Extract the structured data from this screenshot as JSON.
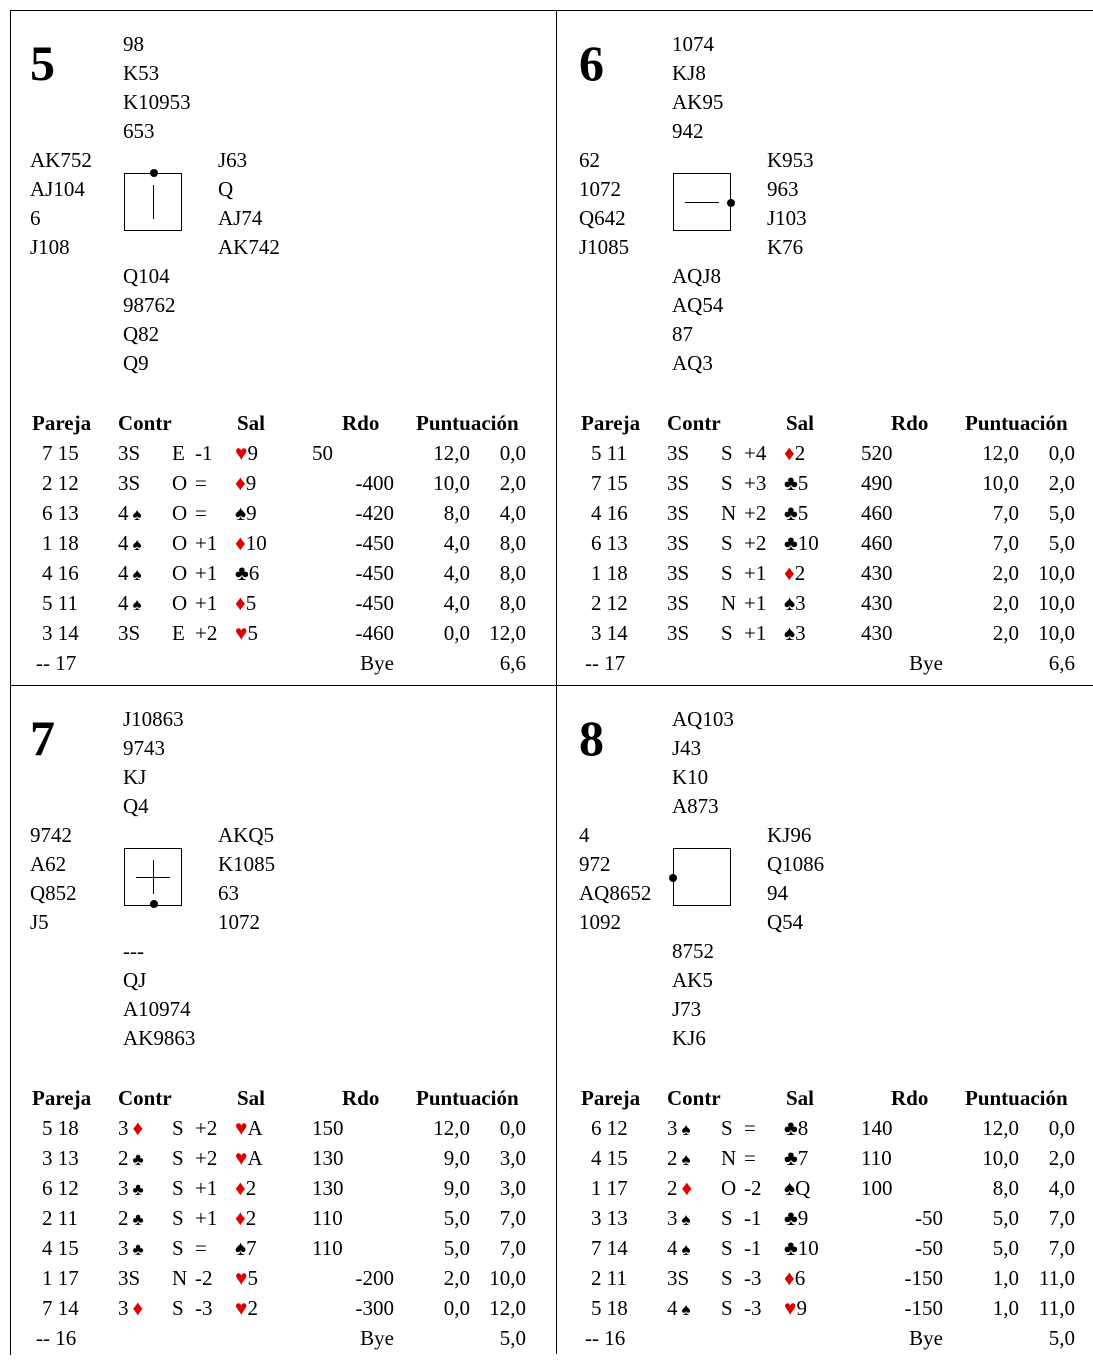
{
  "boards": [
    {
      "number": "5",
      "north": [
        "98",
        "K53",
        "K10953",
        "653"
      ],
      "west": [
        "AK752",
        "AJ104",
        "6",
        "J108"
      ],
      "east": [
        "J63",
        "Q",
        "AJ74",
        "AK742"
      ],
      "south": [
        "Q104",
        "98762",
        "Q82",
        "Q9"
      ],
      "vulnerability": "NS",
      "dealer": "N",
      "headers": {
        "pair": "Pareja",
        "contract": "Contr",
        "lead": "Sal",
        "result": "Rdo",
        "points": "Puntuación"
      },
      "rows": [
        {
          "pair": "7 15",
          "contract": "3S",
          "declarer": "E",
          "tricks": "-1",
          "lead_suit": "♥",
          "lead_card": "9",
          "score": "50",
          "score_side": "ns",
          "pts_ns": "12,0",
          "pts_ew": "0,0"
        },
        {
          "pair": "2 12",
          "contract": "3S",
          "declarer": "O",
          "tricks": "=",
          "lead_suit": "♦",
          "lead_card": "9",
          "score": "-400",
          "score_side": "ew",
          "pts_ns": "10,0",
          "pts_ew": "2,0"
        },
        {
          "pair": "6 13",
          "contract": "4♠",
          "declarer": "O",
          "tricks": "=",
          "lead_suit": "♠",
          "lead_card": "9",
          "score": "-420",
          "score_side": "ew",
          "pts_ns": "8,0",
          "pts_ew": "4,0"
        },
        {
          "pair": "1 18",
          "contract": "4♠",
          "declarer": "O",
          "tricks": "+1",
          "lead_suit": "♦",
          "lead_card": "10",
          "score": "-450",
          "score_side": "ew",
          "pts_ns": "4,0",
          "pts_ew": "8,0"
        },
        {
          "pair": "4 16",
          "contract": "4♠",
          "declarer": "O",
          "tricks": "+1",
          "lead_suit": "♣",
          "lead_card": "6",
          "score": "-450",
          "score_side": "ew",
          "pts_ns": "4,0",
          "pts_ew": "8,0"
        },
        {
          "pair": "5 11",
          "contract": "4♠",
          "declarer": "O",
          "tricks": "+1",
          "lead_suit": "♦",
          "lead_card": "5",
          "score": "-450",
          "score_side": "ew",
          "pts_ns": "4,0",
          "pts_ew": "8,0"
        },
        {
          "pair": "3 14",
          "contract": "3S",
          "declarer": "E",
          "tricks": "+2",
          "lead_suit": "♥",
          "lead_card": "5",
          "score": "-460",
          "score_side": "ew",
          "pts_ns": "0,0",
          "pts_ew": "12,0"
        }
      ],
      "bye": {
        "pair": "-- 17",
        "label": "Bye",
        "points": "6,6"
      }
    },
    {
      "number": "6",
      "north": [
        "1074",
        "KJ8",
        "AK95",
        "942"
      ],
      "west": [
        "62",
        "1072",
        "Q642",
        "J1085"
      ],
      "east": [
        "K953",
        "963",
        "J103",
        "K76"
      ],
      "south": [
        "AQJ8",
        "AQ54",
        "87",
        "AQ3"
      ],
      "vulnerability": "EW",
      "dealer": "E",
      "headers": {
        "pair": "Pareja",
        "contract": "Contr",
        "lead": "Sal",
        "result": "Rdo",
        "points": "Puntuación"
      },
      "rows": [
        {
          "pair": "5 11",
          "contract": "3S",
          "declarer": "S",
          "tricks": "+4",
          "lead_suit": "♦",
          "lead_card": "2",
          "score": "520",
          "score_side": "ns",
          "pts_ns": "12,0",
          "pts_ew": "0,0"
        },
        {
          "pair": "7 15",
          "contract": "3S",
          "declarer": "S",
          "tricks": "+3",
          "lead_suit": "♣",
          "lead_card": "5",
          "score": "490",
          "score_side": "ns",
          "pts_ns": "10,0",
          "pts_ew": "2,0"
        },
        {
          "pair": "4 16",
          "contract": "3S",
          "declarer": "N",
          "tricks": "+2",
          "lead_suit": "♣",
          "lead_card": "5",
          "score": "460",
          "score_side": "ns",
          "pts_ns": "7,0",
          "pts_ew": "5,0"
        },
        {
          "pair": "6 13",
          "contract": "3S",
          "declarer": "S",
          "tricks": "+2",
          "lead_suit": "♣",
          "lead_card": "10",
          "score": "460",
          "score_side": "ns",
          "pts_ns": "7,0",
          "pts_ew": "5,0"
        },
        {
          "pair": "1 18",
          "contract": "3S",
          "declarer": "S",
          "tricks": "+1",
          "lead_suit": "♦",
          "lead_card": "2",
          "score": "430",
          "score_side": "ns",
          "pts_ns": "2,0",
          "pts_ew": "10,0"
        },
        {
          "pair": "2 12",
          "contract": "3S",
          "declarer": "N",
          "tricks": "+1",
          "lead_suit": "♠",
          "lead_card": "3",
          "score": "430",
          "score_side": "ns",
          "pts_ns": "2,0",
          "pts_ew": "10,0"
        },
        {
          "pair": "3 14",
          "contract": "3S",
          "declarer": "S",
          "tricks": "+1",
          "lead_suit": "♠",
          "lead_card": "3",
          "score": "430",
          "score_side": "ns",
          "pts_ns": "2,0",
          "pts_ew": "10,0"
        }
      ],
      "bye": {
        "pair": "-- 17",
        "label": "Bye",
        "points": "6,6"
      }
    },
    {
      "number": "7",
      "north": [
        "J10863",
        "9743",
        "KJ",
        "Q4"
      ],
      "west": [
        "9742",
        "A62",
        "Q852",
        "J5"
      ],
      "east": [
        "AKQ5",
        "K1085",
        "63",
        "1072"
      ],
      "south": [
        "---",
        "QJ",
        "A10974",
        "AK9863"
      ],
      "vulnerability": "All",
      "dealer": "S",
      "headers": {
        "pair": "Pareja",
        "contract": "Contr",
        "lead": "Sal",
        "result": "Rdo",
        "points": "Puntuación"
      },
      "rows": [
        {
          "pair": "5 18",
          "contract": "3♦",
          "declarer": "S",
          "tricks": "+2",
          "lead_suit": "♥",
          "lead_card": "A",
          "score": "150",
          "score_side": "ns",
          "pts_ns": "12,0",
          "pts_ew": "0,0"
        },
        {
          "pair": "3 13",
          "contract": "2♣",
          "declarer": "S",
          "tricks": "+2",
          "lead_suit": "♥",
          "lead_card": "A",
          "score": "130",
          "score_side": "ns",
          "pts_ns": "9,0",
          "pts_ew": "3,0"
        },
        {
          "pair": "6 12",
          "contract": "3♣",
          "declarer": "S",
          "tricks": "+1",
          "lead_suit": "♦",
          "lead_card": "2",
          "score": "130",
          "score_side": "ns",
          "pts_ns": "9,0",
          "pts_ew": "3,0"
        },
        {
          "pair": "2 11",
          "contract": "2♣",
          "declarer": "S",
          "tricks": "+1",
          "lead_suit": "♦",
          "lead_card": "2",
          "score": "110",
          "score_side": "ns",
          "pts_ns": "5,0",
          "pts_ew": "7,0"
        },
        {
          "pair": "4 15",
          "contract": "3♣",
          "declarer": "S",
          "tricks": "=",
          "lead_suit": "♠",
          "lead_card": "7",
          "score": "110",
          "score_side": "ns",
          "pts_ns": "5,0",
          "pts_ew": "7,0"
        },
        {
          "pair": "1 17",
          "contract": "3S",
          "declarer": "N",
          "tricks": "-2",
          "lead_suit": "♥",
          "lead_card": "5",
          "score": "-200",
          "score_side": "ew",
          "pts_ns": "2,0",
          "pts_ew": "10,0"
        },
        {
          "pair": "7 14",
          "contract": "3♦",
          "declarer": "S",
          "tricks": "-3",
          "lead_suit": "♥",
          "lead_card": "2",
          "score": "-300",
          "score_side": "ew",
          "pts_ns": "0,0",
          "pts_ew": "12,0"
        }
      ],
      "bye": {
        "pair": "-- 16",
        "label": "Bye",
        "points": "5,0"
      }
    },
    {
      "number": "8",
      "north": [
        "AQ103",
        "J43",
        "K10",
        "A873"
      ],
      "west": [
        "4",
        "972",
        "AQ8652",
        "1092"
      ],
      "east": [
        "KJ96",
        "Q1086",
        "94",
        "Q54"
      ],
      "south": [
        "8752",
        "AK5",
        "J73",
        "KJ6"
      ],
      "vulnerability": "None",
      "dealer": "W",
      "headers": {
        "pair": "Pareja",
        "contract": "Contr",
        "lead": "Sal",
        "result": "Rdo",
        "points": "Puntuación"
      },
      "rows": [
        {
          "pair": "6 12",
          "contract": "3♠",
          "declarer": "S",
          "tricks": "=",
          "lead_suit": "♣",
          "lead_card": "8",
          "score": "140",
          "score_side": "ns",
          "pts_ns": "12,0",
          "pts_ew": "0,0"
        },
        {
          "pair": "4 15",
          "contract": "2♠",
          "declarer": "N",
          "tricks": "=",
          "lead_suit": "♣",
          "lead_card": "7",
          "score": "110",
          "score_side": "ns",
          "pts_ns": "10,0",
          "pts_ew": "2,0"
        },
        {
          "pair": "1 17",
          "contract": "2♦",
          "declarer": "O",
          "tricks": "-2",
          "lead_suit": "♠",
          "lead_card": "Q",
          "score": "100",
          "score_side": "ns",
          "pts_ns": "8,0",
          "pts_ew": "4,0"
        },
        {
          "pair": "3 13",
          "contract": "3♠",
          "declarer": "S",
          "tricks": "-1",
          "lead_suit": "♣",
          "lead_card": "9",
          "score": "-50",
          "score_side": "ew",
          "pts_ns": "5,0",
          "pts_ew": "7,0"
        },
        {
          "pair": "7 14",
          "contract": "4♠",
          "declarer": "S",
          "tricks": "-1",
          "lead_suit": "♣",
          "lead_card": "10",
          "score": "-50",
          "score_side": "ew",
          "pts_ns": "5,0",
          "pts_ew": "7,0"
        },
        {
          "pair": "2 11",
          "contract": "3S",
          "declarer": "S",
          "tricks": "-3",
          "lead_suit": "♦",
          "lead_card": "6",
          "score": "-150",
          "score_side": "ew",
          "pts_ns": "1,0",
          "pts_ew": "11,0"
        },
        {
          "pair": "5 18",
          "contract": "4♠",
          "declarer": "S",
          "tricks": "-3",
          "lead_suit": "♥",
          "lead_card": "9",
          "score": "-150",
          "score_side": "ew",
          "pts_ns": "1,0",
          "pts_ew": "11,0"
        }
      ],
      "bye": {
        "pair": "-- 16",
        "label": "Bye",
        "points": "5,0"
      }
    }
  ],
  "colors": {
    "red_suit": "#e00000",
    "black": "#000000"
  }
}
